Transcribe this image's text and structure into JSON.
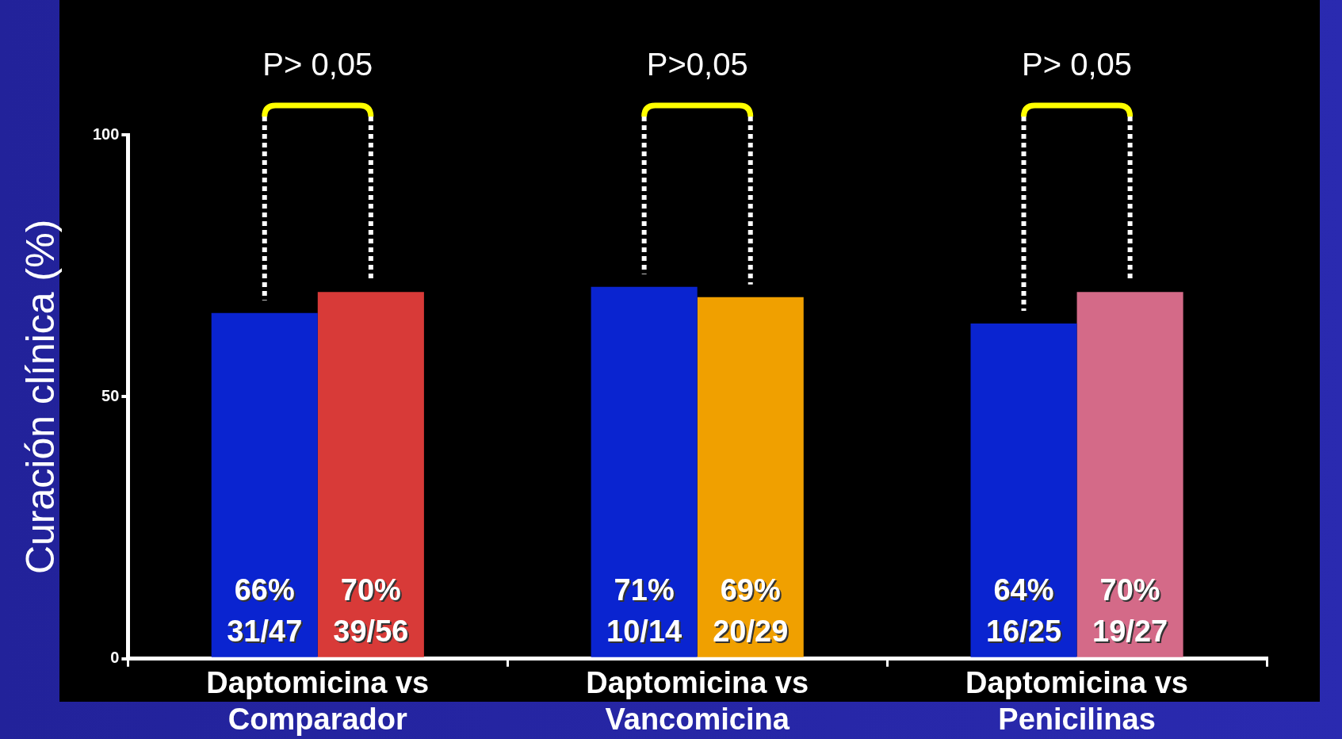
{
  "chart_data": {
    "type": "bar",
    "ylabel": "Curación clínica (%)",
    "categories": [
      "Daptomicina vs Comparador",
      "Daptomicina vs Vancomicina",
      "Daptomicina vs Penicilinas"
    ],
    "series": [
      {
        "color": "#0a24d0",
        "values": [
          66,
          71,
          64
        ],
        "value_labels": [
          "66%\n31/47",
          "71%\n10/14",
          "64%\n16/25"
        ]
      },
      {
        "colors": [
          "#d83a38",
          "#f0a000",
          "#d46a88"
        ],
        "values": [
          70,
          69,
          70
        ],
        "value_labels": [
          "70%\n39/56",
          "69%\n20/29",
          "70%\n19/27"
        ]
      }
    ],
    "ylim": [
      0,
      100
    ],
    "yticks": [
      0,
      50,
      100
    ],
    "annotations": [
      "P> 0,05",
      "P>0,05",
      "P> 0,05"
    ]
  }
}
